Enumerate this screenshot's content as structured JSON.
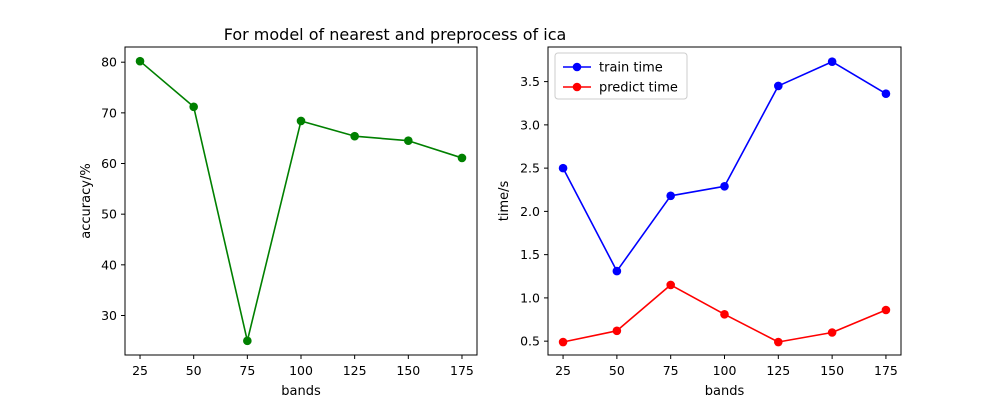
{
  "figure": {
    "title": "For model of nearest and preprocess of ica"
  },
  "chart_data": [
    {
      "type": "line",
      "title": "",
      "xlabel": "bands",
      "ylabel": "accuracy/%",
      "x": [
        25,
        50,
        75,
        100,
        125,
        150,
        175
      ],
      "xlim": [
        18,
        182
      ],
      "ylim": [
        22.2,
        83.0
      ],
      "xticks": [
        25,
        50,
        75,
        100,
        125,
        150,
        175
      ],
      "yticks": [
        30,
        40,
        50,
        60,
        70,
        80
      ],
      "grid": false,
      "legend": null,
      "series": [
        {
          "name": "",
          "color": "#008000",
          "marker": "circle",
          "values": [
            80.2,
            71.2,
            25.0,
            68.4,
            65.4,
            64.5,
            61.1
          ]
        }
      ]
    },
    {
      "type": "line",
      "title": "",
      "xlabel": "bands",
      "ylabel": "time/s",
      "x": [
        25,
        50,
        75,
        100,
        125,
        150,
        175
      ],
      "xlim": [
        18,
        182
      ],
      "ylim": [
        0.34,
        3.9
      ],
      "xticks": [
        25,
        50,
        75,
        100,
        125,
        150,
        175
      ],
      "yticks": [
        0.5,
        1.0,
        1.5,
        2.0,
        2.5,
        3.0,
        3.5
      ],
      "grid": false,
      "legend": "top-left",
      "series": [
        {
          "name": "train time",
          "color": "#0000ff",
          "marker": "circle",
          "values": [
            2.5,
            1.31,
            2.18,
            2.29,
            3.45,
            3.73,
            3.36
          ]
        },
        {
          "name": "predict time",
          "color": "#ff0000",
          "marker": "circle",
          "values": [
            0.49,
            0.62,
            1.15,
            0.81,
            0.49,
            0.6,
            0.86
          ]
        }
      ]
    }
  ]
}
